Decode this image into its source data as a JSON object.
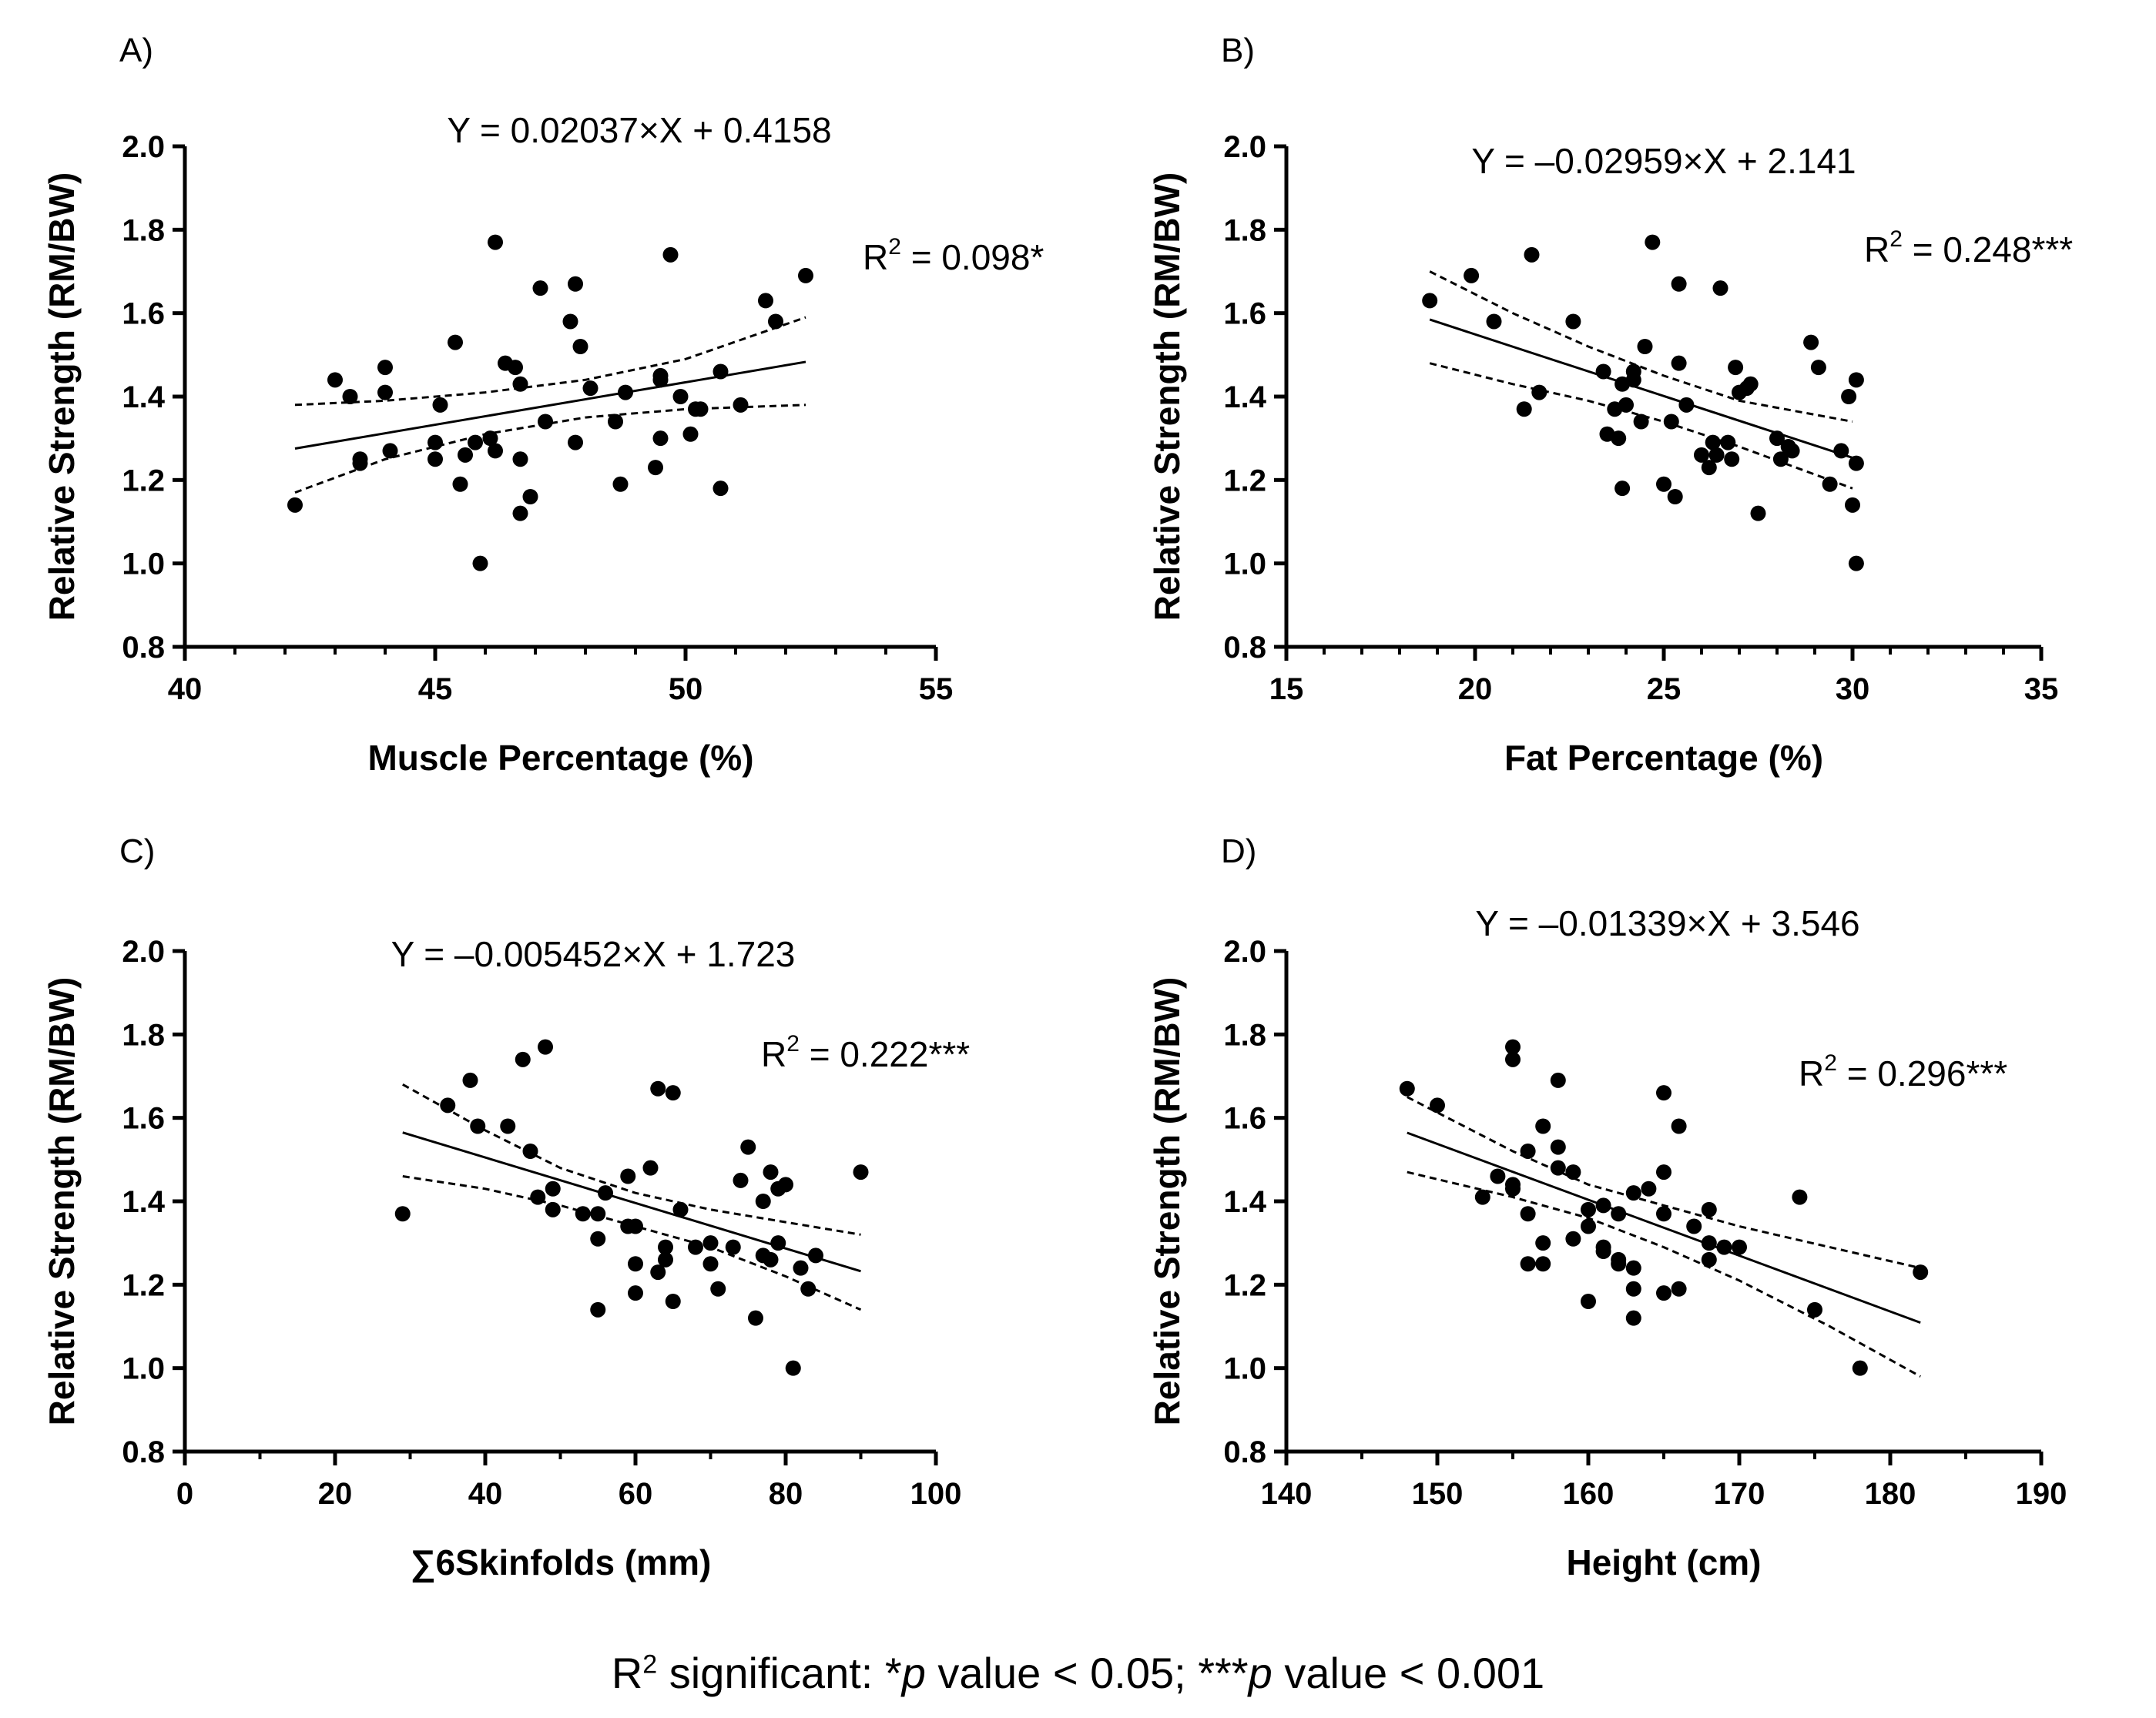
{
  "footnote": {
    "prefix": "R",
    "superscript": "2",
    "text_1": " significant: *",
    "p1": "p",
    "text_2": " value < 0.05; ***",
    "p2": "p",
    "text_3": " value < 0.001"
  },
  "chart_data": [
    {
      "type": "scatter",
      "panel": "A)",
      "equation": "Y = 0.02037×X + 0.4158",
      "r2": {
        "prefix": "R",
        "superscript": "2",
        "value": " = 0.098*"
      },
      "xlabel": "Muscle Percentage (%)",
      "ylabel": "Relative Strength (RM/BW)",
      "xlim": [
        40,
        55
      ],
      "ylim": [
        0.8,
        2.0
      ],
      "x_ticks": [
        40,
        45,
        50,
        55
      ],
      "x_minor": 1,
      "y_ticks": [
        0.8,
        1.0,
        1.2,
        1.4,
        1.6,
        1.8,
        2.0
      ],
      "y_tick_labels": [
        "0.8",
        "1.0",
        "1.2",
        "1.4",
        "1.6",
        "1.8",
        "2.0"
      ],
      "fit": {
        "slope": 0.02037,
        "intercept": 0.4158,
        "x_range": [
          42.2,
          52.4
        ]
      },
      "ci_upper": [
        [
          42.2,
          1.38
        ],
        [
          44,
          1.39
        ],
        [
          46,
          1.41
        ],
        [
          48,
          1.44
        ],
        [
          50,
          1.49
        ],
        [
          52.4,
          1.59
        ]
      ],
      "ci_lower": [
        [
          42.2,
          1.17
        ],
        [
          44,
          1.25
        ],
        [
          46,
          1.31
        ],
        [
          48,
          1.35
        ],
        [
          50,
          1.37
        ],
        [
          52.4,
          1.38
        ]
      ],
      "points": [
        [
          42.2,
          1.14
        ],
        [
          43.0,
          1.44
        ],
        [
          43.3,
          1.4
        ],
        [
          43.5,
          1.25
        ],
        [
          43.5,
          1.24
        ],
        [
          44.0,
          1.47
        ],
        [
          44.0,
          1.41
        ],
        [
          44.1,
          1.27
        ],
        [
          45.0,
          1.29
        ],
        [
          45.0,
          1.25
        ],
        [
          45.1,
          1.38
        ],
        [
          45.4,
          1.53
        ],
        [
          45.5,
          1.19
        ],
        [
          45.6,
          1.26
        ],
        [
          45.8,
          1.29
        ],
        [
          45.9,
          1.0
        ],
        [
          46.1,
          1.3
        ],
        [
          46.2,
          1.77
        ],
        [
          46.2,
          1.27
        ],
        [
          46.4,
          1.48
        ],
        [
          46.6,
          1.47
        ],
        [
          46.7,
          1.25
        ],
        [
          46.7,
          1.12
        ],
        [
          46.7,
          1.43
        ],
        [
          46.9,
          1.16
        ],
        [
          47.1,
          1.66
        ],
        [
          47.2,
          1.34
        ],
        [
          47.7,
          1.58
        ],
        [
          47.8,
          1.67
        ],
        [
          47.8,
          1.29
        ],
        [
          47.9,
          1.52
        ],
        [
          48.1,
          1.42
        ],
        [
          48.6,
          1.34
        ],
        [
          48.7,
          1.19
        ],
        [
          48.8,
          1.41
        ],
        [
          49.4,
          1.23
        ],
        [
          49.5,
          1.44
        ],
        [
          49.5,
          1.45
        ],
        [
          49.5,
          1.3
        ],
        [
          49.7,
          1.74
        ],
        [
          49.9,
          1.4
        ],
        [
          50.1,
          1.31
        ],
        [
          50.2,
          1.37
        ],
        [
          50.3,
          1.37
        ],
        [
          50.7,
          1.18
        ],
        [
          50.7,
          1.46
        ],
        [
          51.1,
          1.38
        ],
        [
          51.6,
          1.63
        ],
        [
          51.8,
          1.58
        ],
        [
          52.4,
          1.69
        ]
      ]
    },
    {
      "type": "scatter",
      "panel": "B)",
      "equation": "Y = -0.02959×X + 2.141",
      "r2": {
        "prefix": "R",
        "superscript": "2",
        "value": " = 0.248***"
      },
      "xlabel": "Fat Percentage (%)",
      "ylabel": "Relative Strength (RM/BW)",
      "xlim": [
        15,
        35
      ],
      "ylim": [
        0.8,
        2.0
      ],
      "x_ticks": [
        15,
        20,
        25,
        30,
        35
      ],
      "x_minor": 1,
      "y_ticks": [
        0.8,
        1.0,
        1.2,
        1.4,
        1.6,
        1.8,
        2.0
      ],
      "y_tick_labels": [
        "0.8",
        "1.0",
        "1.2",
        "1.4",
        "1.6",
        "1.8",
        "2.0"
      ],
      "fit": {
        "slope": -0.02959,
        "intercept": 2.141,
        "x_range": [
          18.8,
          30.0
        ]
      },
      "ci_upper": [
        [
          18.8,
          1.7
        ],
        [
          21,
          1.6
        ],
        [
          23,
          1.52
        ],
        [
          25,
          1.45
        ],
        [
          27,
          1.39
        ],
        [
          30,
          1.34
        ]
      ],
      "ci_lower": [
        [
          18.8,
          1.48
        ],
        [
          21,
          1.43
        ],
        [
          23,
          1.39
        ],
        [
          25,
          1.34
        ],
        [
          27,
          1.28
        ],
        [
          30,
          1.18
        ]
      ],
      "points": [
        [
          18.8,
          1.63
        ],
        [
          19.9,
          1.69
        ],
        [
          20.5,
          1.58
        ],
        [
          21.3,
          1.37
        ],
        [
          21.5,
          1.74
        ],
        [
          21.7,
          1.41
        ],
        [
          22.6,
          1.58
        ],
        [
          23.4,
          1.46
        ],
        [
          23.5,
          1.31
        ],
        [
          23.7,
          1.37
        ],
        [
          23.8,
          1.3
        ],
        [
          23.9,
          1.18
        ],
        [
          23.9,
          1.43
        ],
        [
          24.0,
          1.38
        ],
        [
          24.2,
          1.44
        ],
        [
          24.2,
          1.46
        ],
        [
          24.4,
          1.34
        ],
        [
          24.5,
          1.52
        ],
        [
          24.7,
          1.77
        ],
        [
          25.0,
          1.19
        ],
        [
          25.2,
          1.34
        ],
        [
          25.3,
          1.16
        ],
        [
          25.4,
          1.48
        ],
        [
          25.4,
          1.67
        ],
        [
          25.6,
          1.38
        ],
        [
          26.0,
          1.26
        ],
        [
          26.2,
          1.23
        ],
        [
          26.3,
          1.29
        ],
        [
          26.4,
          1.26
        ],
        [
          26.5,
          1.66
        ],
        [
          26.7,
          1.29
        ],
        [
          26.8,
          1.25
        ],
        [
          26.9,
          1.47
        ],
        [
          27.0,
          1.41
        ],
        [
          27.2,
          1.42
        ],
        [
          27.3,
          1.43
        ],
        [
          27.5,
          1.12
        ],
        [
          28.0,
          1.3
        ],
        [
          28.1,
          1.25
        ],
        [
          28.3,
          1.28
        ],
        [
          28.4,
          1.27
        ],
        [
          28.9,
          1.53
        ],
        [
          29.1,
          1.47
        ],
        [
          29.4,
          1.19
        ],
        [
          29.7,
          1.27
        ],
        [
          29.9,
          1.4
        ],
        [
          30.0,
          1.14
        ],
        [
          30.1,
          1.44
        ],
        [
          30.1,
          1.24
        ],
        [
          30.1,
          1.0
        ]
      ]
    },
    {
      "type": "scatter",
      "panel": "C)",
      "equation": "Y = -0.005452×X + 1.723",
      "r2": {
        "prefix": "R",
        "superscript": "2",
        "value": " = 0.222***"
      },
      "xlabel": "∑6Skinfolds (mm)",
      "ylabel": "Relative Strength (RM/BW)",
      "xlim": [
        0,
        100
      ],
      "ylim": [
        0.8,
        2.0
      ],
      "x_ticks": [
        0,
        20,
        40,
        60,
        80,
        100
      ],
      "x_minor": 10,
      "y_ticks": [
        0.8,
        1.0,
        1.2,
        1.4,
        1.6,
        1.8,
        2.0
      ],
      "y_tick_labels": [
        "0.8",
        "1.0",
        "1.2",
        "1.4",
        "1.6",
        "1.8",
        "2.0"
      ],
      "fit": {
        "slope": -0.005452,
        "intercept": 1.723,
        "x_range": [
          29,
          90
        ]
      },
      "ci_upper": [
        [
          29,
          1.68
        ],
        [
          40,
          1.57
        ],
        [
          50,
          1.48
        ],
        [
          60,
          1.42
        ],
        [
          70,
          1.38
        ],
        [
          80,
          1.35
        ],
        [
          90,
          1.32
        ]
      ],
      "ci_lower": [
        [
          29,
          1.46
        ],
        [
          40,
          1.43
        ],
        [
          50,
          1.39
        ],
        [
          60,
          1.34
        ],
        [
          70,
          1.29
        ],
        [
          80,
          1.22
        ],
        [
          90,
          1.14
        ]
      ],
      "points": [
        [
          29,
          1.37
        ],
        [
          35,
          1.63
        ],
        [
          38,
          1.69
        ],
        [
          39,
          1.58
        ],
        [
          43,
          1.58
        ],
        [
          45,
          1.74
        ],
        [
          46,
          1.52
        ],
        [
          47,
          1.41
        ],
        [
          48,
          1.77
        ],
        [
          49,
          1.43
        ],
        [
          49,
          1.38
        ],
        [
          53,
          1.37
        ],
        [
          55,
          1.14
        ],
        [
          55,
          1.31
        ],
        [
          55,
          1.37
        ],
        [
          56,
          1.42
        ],
        [
          59,
          1.46
        ],
        [
          59,
          1.34
        ],
        [
          60,
          1.25
        ],
        [
          60,
          1.18
        ],
        [
          60,
          1.34
        ],
        [
          62,
          1.48
        ],
        [
          63,
          1.67
        ],
        [
          63,
          1.23
        ],
        [
          64,
          1.29
        ],
        [
          64,
          1.26
        ],
        [
          65,
          1.66
        ],
        [
          65,
          1.16
        ],
        [
          66,
          1.38
        ],
        [
          68,
          1.29
        ],
        [
          70,
          1.3
        ],
        [
          70,
          1.25
        ],
        [
          71,
          1.19
        ],
        [
          73,
          1.29
        ],
        [
          74,
          1.45
        ],
        [
          75,
          1.53
        ],
        [
          76,
          1.12
        ],
        [
          77,
          1.4
        ],
        [
          77,
          1.27
        ],
        [
          78,
          1.26
        ],
        [
          78,
          1.47
        ],
        [
          79,
          1.3
        ],
        [
          79,
          1.43
        ],
        [
          80,
          1.44
        ],
        [
          81,
          1.0
        ],
        [
          82,
          1.24
        ],
        [
          83,
          1.19
        ],
        [
          84,
          1.27
        ],
        [
          90,
          1.47
        ]
      ]
    },
    {
      "type": "scatter",
      "panel": "D)",
      "equation": "Y = -0.01339×X + 3.546",
      "r2": {
        "prefix": "R",
        "superscript": "2",
        "value": " = 0.296***"
      },
      "xlabel": "Height (cm)",
      "ylabel": "Relative Strength (RM/BW)",
      "xlim": [
        140,
        190
      ],
      "ylim": [
        0.8,
        2.0
      ],
      "x_ticks": [
        140,
        150,
        160,
        170,
        180,
        190
      ],
      "x_minor": 5,
      "y_ticks": [
        0.8,
        1.0,
        1.2,
        1.4,
        1.6,
        1.8,
        2.0
      ],
      "y_tick_labels": [
        "0.8",
        "1.0",
        "1.2",
        "1.4",
        "1.6",
        "1.8",
        "2.0"
      ],
      "fit": {
        "slope": -0.01339,
        "intercept": 3.546,
        "x_range": [
          148,
          182
        ]
      },
      "ci_upper": [
        [
          148,
          1.65
        ],
        [
          155,
          1.52
        ],
        [
          160,
          1.44
        ],
        [
          165,
          1.39
        ],
        [
          170,
          1.34
        ],
        [
          176,
          1.29
        ],
        [
          182,
          1.24
        ]
      ],
      "ci_lower": [
        [
          148,
          1.47
        ],
        [
          155,
          1.41
        ],
        [
          160,
          1.36
        ],
        [
          165,
          1.29
        ],
        [
          170,
          1.21
        ],
        [
          176,
          1.1
        ],
        [
          182,
          0.98
        ]
      ],
      "points": [
        [
          148,
          1.67
        ],
        [
          150,
          1.63
        ],
        [
          153,
          1.41
        ],
        [
          154,
          1.46
        ],
        [
          155,
          1.77
        ],
        [
          155,
          1.74
        ],
        [
          155,
          1.44
        ],
        [
          155,
          1.43
        ],
        [
          156,
          1.37
        ],
        [
          156,
          1.25
        ],
        [
          156,
          1.52
        ],
        [
          157,
          1.3
        ],
        [
          157,
          1.25
        ],
        [
          157,
          1.58
        ],
        [
          158,
          1.69
        ],
        [
          158,
          1.53
        ],
        [
          158,
          1.48
        ],
        [
          159,
          1.31
        ],
        [
          159,
          1.47
        ],
        [
          160,
          1.34
        ],
        [
          160,
          1.16
        ],
        [
          160,
          1.38
        ],
        [
          161,
          1.39
        ],
        [
          161,
          1.29
        ],
        [
          161,
          1.28
        ],
        [
          162,
          1.26
        ],
        [
          162,
          1.25
        ],
        [
          162,
          1.37
        ],
        [
          163,
          1.24
        ],
        [
          163,
          1.19
        ],
        [
          163,
          1.12
        ],
        [
          163,
          1.42
        ],
        [
          164,
          1.43
        ],
        [
          165,
          1.66
        ],
        [
          165,
          1.47
        ],
        [
          165,
          1.37
        ],
        [
          165,
          1.18
        ],
        [
          166,
          1.19
        ],
        [
          166,
          1.58
        ],
        [
          167,
          1.34
        ],
        [
          168,
          1.38
        ],
        [
          168,
          1.3
        ],
        [
          168,
          1.26
        ],
        [
          169,
          1.29
        ],
        [
          170,
          1.29
        ],
        [
          174,
          1.41
        ],
        [
          175,
          1.14
        ],
        [
          178,
          1.0
        ],
        [
          182,
          1.23
        ]
      ]
    }
  ]
}
